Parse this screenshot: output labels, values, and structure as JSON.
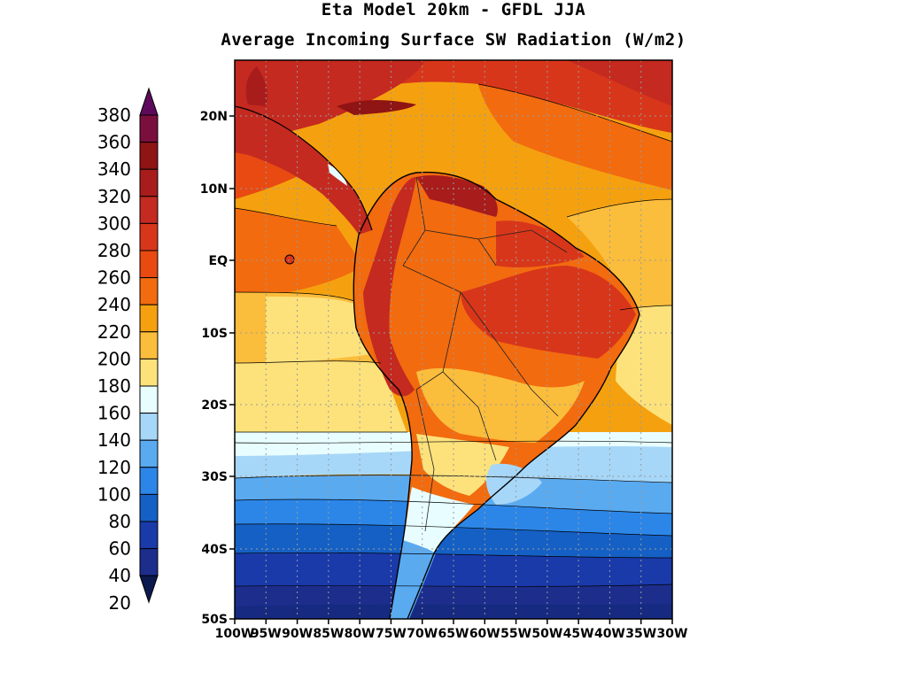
{
  "title_line1": "Eta Model 20km - GFDL JJA",
  "title_line2": "Average Incoming Surface SW Radiation (W/m2)",
  "colorbar": {
    "labels": [
      "380",
      "360",
      "340",
      "320",
      "300",
      "280",
      "260",
      "240",
      "220",
      "200",
      "180",
      "160",
      "140",
      "120",
      "100",
      "80",
      "60",
      "40",
      "20"
    ],
    "colors_top_to_bottom": [
      "#5e0a5c",
      "#7a0f3e",
      "#8f1414",
      "#a91c1c",
      "#c42a20",
      "#d8361a",
      "#e84a12",
      "#f26b0f",
      "#f5a10f",
      "#fbbd3c",
      "#fde27c",
      "#e8fdff",
      "#a7d7f8",
      "#5aaaf0",
      "#2c86e8",
      "#1560c4",
      "#1a3aaa",
      "#1c2d8c",
      "#0b1a4e"
    ]
  },
  "map": {
    "lat_labels": [
      "20N",
      "10N",
      "EQ",
      "10S",
      "20S",
      "30S",
      "40S",
      "50S"
    ],
    "lon_labels": [
      "100W",
      "95W",
      "90W",
      "85W",
      "80W",
      "75W",
      "70W",
      "65W",
      "60W",
      "55W",
      "50W",
      "45W",
      "40W",
      "35W",
      "30W"
    ]
  }
}
